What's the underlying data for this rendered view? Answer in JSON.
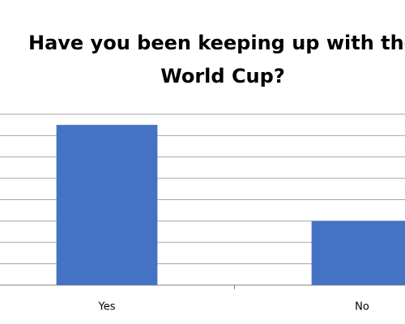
{
  "chart_data": {
    "type": "bar",
    "title": [
      "Have you been keeping up with the",
      "World Cup?"
    ],
    "categories": [
      "Yes",
      "No"
    ],
    "values": [
      7.5,
      3
    ],
    "color": "#4472c4",
    "ylim": [
      0,
      8
    ],
    "yticks": [
      0,
      1,
      2,
      3,
      4,
      5,
      6,
      7,
      8
    ],
    "grid": true
  }
}
